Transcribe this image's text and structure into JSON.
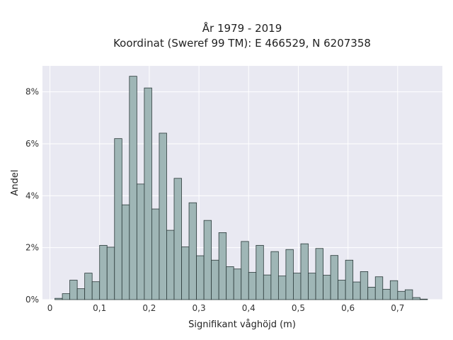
{
  "chart_data": {
    "type": "bar",
    "title": "År 1979 - 2019",
    "subtitle": "Koordinat (Sweref 99 TM): E 466529, N 6207358",
    "xlabel": "Signifikant våghöjd (m)",
    "ylabel": "Andel",
    "xlim": [
      -0.015,
      0.79
    ],
    "ylim": [
      0,
      0.09
    ],
    "x_ticks": [
      {
        "value": 0,
        "label": "0"
      },
      {
        "value": 0.1,
        "label": "0,1"
      },
      {
        "value": 0.2,
        "label": "0,2"
      },
      {
        "value": 0.3,
        "label": "0,3"
      },
      {
        "value": 0.4,
        "label": "0,4"
      },
      {
        "value": 0.5,
        "label": "0,5"
      },
      {
        "value": 0.6,
        "label": "0,6"
      },
      {
        "value": 0.7,
        "label": "0,7"
      }
    ],
    "y_ticks": [
      {
        "value": 0,
        "label": "0%"
      },
      {
        "value": 0.02,
        "label": "2%"
      },
      {
        "value": 0.04,
        "label": "4%"
      },
      {
        "value": 0.06,
        "label": "6%"
      },
      {
        "value": 0.08,
        "label": "8%"
      }
    ],
    "bin_width": 0.015,
    "bin_start": 0.01,
    "values": [
      0.0005,
      0.0023,
      0.0075,
      0.0042,
      0.0102,
      0.0069,
      0.0209,
      0.0202,
      0.062,
      0.0365,
      0.086,
      0.0445,
      0.0815,
      0.0349,
      0.0641,
      0.0267,
      0.0467,
      0.0203,
      0.0373,
      0.0169,
      0.0305,
      0.0152,
      0.0258,
      0.0127,
      0.0118,
      0.0224,
      0.0105,
      0.0209,
      0.0095,
      0.0185,
      0.0091,
      0.0193,
      0.0102,
      0.0215,
      0.0102,
      0.0197,
      0.0094,
      0.017,
      0.0075,
      0.0152,
      0.0068,
      0.0108,
      0.0048,
      0.0088,
      0.004,
      0.0073,
      0.0032,
      0.0038,
      0.0008,
      0.0002
    ],
    "grid": true,
    "colors": {
      "bar_fill": "#9fb6b6",
      "bar_stroke": "#2b3a3a",
      "plot_bg": "#e9e9f2",
      "grid": "#ffffff"
    }
  }
}
